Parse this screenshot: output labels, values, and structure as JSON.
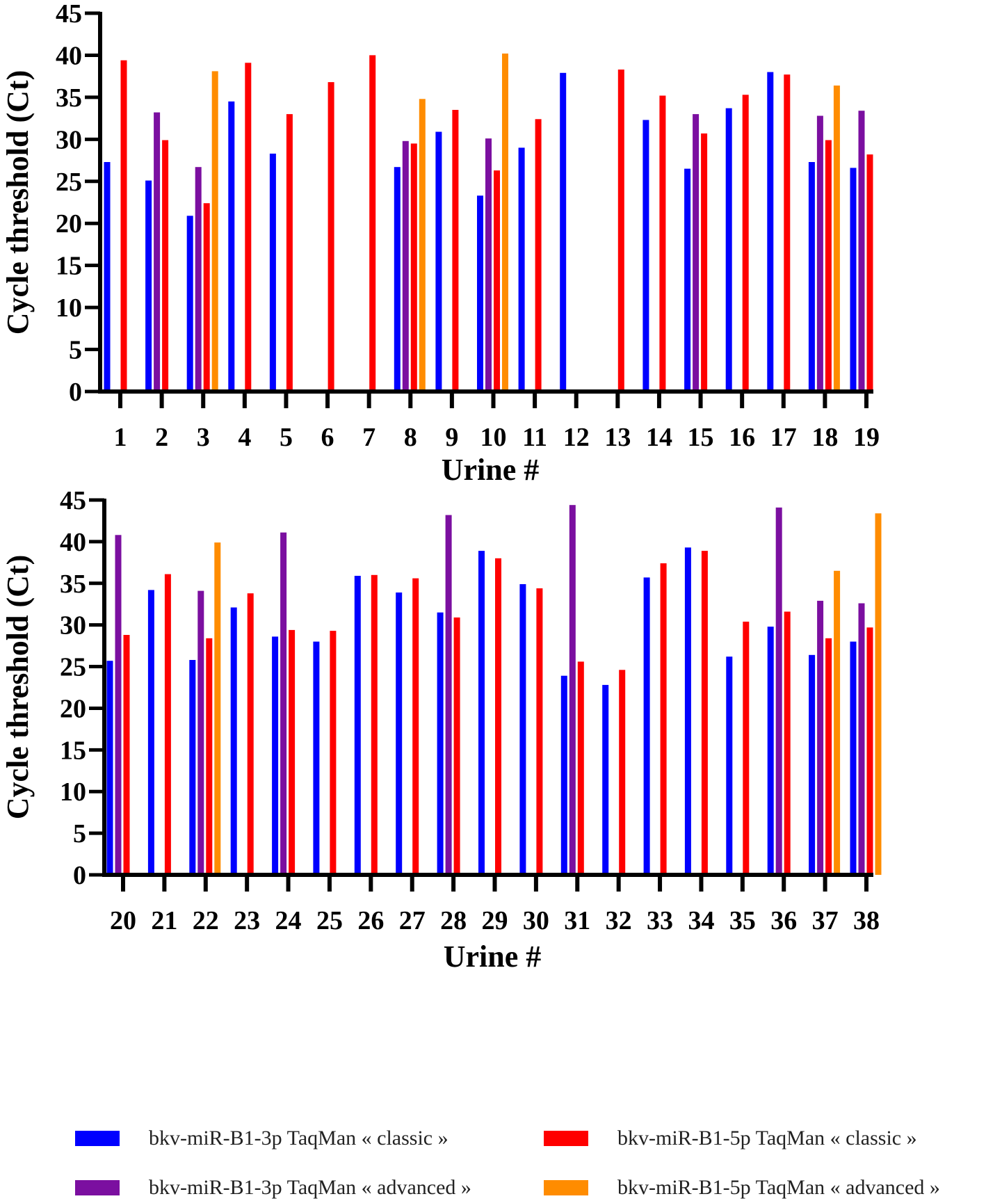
{
  "colors": {
    "classic_3p": "#0000ff",
    "advanced_3p": "#7b0fa0",
    "classic_5p": "#ff0000",
    "advanced_5p": "#ff8c00",
    "axis": "#000000"
  },
  "legend": {
    "items": [
      {
        "label": "bkv-miR-B1-3p TaqMan « classic »",
        "color": "#0000ff"
      },
      {
        "label": "bkv-miR-B1-5p TaqMan « classic »",
        "color": "#ff0000"
      },
      {
        "label": "bkv-miR-B1-3p TaqMan « advanced »",
        "color": "#7b0fa0"
      },
      {
        "label": "bkv-miR-B1-5p TaqMan « advanced »",
        "color": "#ff8c00"
      }
    ]
  },
  "chart_data": [
    {
      "type": "bar",
      "xlabel": "Urine #",
      "ylabel": "Cycle threshold (Ct)",
      "ylim": [
        0,
        45
      ],
      "yticks": [
        "0",
        "5",
        "10",
        "15",
        "20",
        "25",
        "30",
        "35",
        "40",
        "45"
      ],
      "categories": [
        "1",
        "2",
        "3",
        "4",
        "5",
        "6",
        "7",
        "8",
        "9",
        "10",
        "11",
        "12",
        "13",
        "14",
        "15",
        "16",
        "17",
        "18",
        "19"
      ],
      "series": [
        {
          "name": "bkv-miR-B1-3p TaqMan « classic »",
          "color": "#0000ff",
          "values": [
            27.3,
            25.1,
            20.9,
            34.5,
            28.3,
            0,
            0,
            26.7,
            30.9,
            23.3,
            29.0,
            37.9,
            0,
            32.3,
            26.5,
            33.7,
            38.0,
            27.3,
            26.6
          ]
        },
        {
          "name": "bkv-miR-B1-3p TaqMan « advanced »",
          "color": "#7b0fa0",
          "values": [
            0,
            33.2,
            26.7,
            0,
            0,
            0,
            0,
            29.8,
            0,
            30.1,
            0,
            0,
            0,
            0,
            33.0,
            0,
            0,
            32.8,
            33.4
          ]
        },
        {
          "name": "bkv-miR-B1-5p TaqMan « classic »",
          "color": "#ff0000",
          "values": [
            39.4,
            29.9,
            22.4,
            39.1,
            33.0,
            36.8,
            40.0,
            29.5,
            33.5,
            26.3,
            32.4,
            0,
            38.3,
            35.2,
            30.7,
            35.3,
            37.7,
            29.9,
            28.2
          ]
        },
        {
          "name": "bkv-miR-B1-5p TaqMan « advanced »",
          "color": "#ff8c00",
          "values": [
            0,
            0,
            38.1,
            0,
            0,
            0,
            0,
            34.8,
            0,
            40.2,
            0,
            0,
            0,
            0,
            0,
            0,
            0,
            36.4,
            0
          ]
        }
      ]
    },
    {
      "type": "bar",
      "xlabel": "Urine #",
      "ylabel": "Cycle threshold (Ct)",
      "ylim": [
        0,
        45
      ],
      "yticks": [
        "0",
        "5",
        "10",
        "15",
        "20",
        "25",
        "30",
        "35",
        "40",
        "45"
      ],
      "categories": [
        "20",
        "21",
        "22",
        "23",
        "24",
        "25",
        "26",
        "27",
        "28",
        "29",
        "30",
        "31",
        "32",
        "33",
        "34",
        "35",
        "36",
        "37",
        "38"
      ],
      "series": [
        {
          "name": "bkv-miR-B1-3p TaqMan « classic »",
          "color": "#0000ff",
          "values": [
            25.7,
            34.2,
            25.8,
            32.1,
            28.6,
            28.0,
            35.9,
            33.9,
            31.5,
            38.9,
            34.9,
            23.9,
            22.8,
            35.7,
            39.3,
            26.2,
            29.8,
            26.4,
            28.0
          ]
        },
        {
          "name": "bkv-miR-B1-3p TaqMan « advanced »",
          "color": "#7b0fa0",
          "values": [
            40.8,
            0,
            34.1,
            0,
            41.1,
            0,
            0,
            0,
            43.2,
            0,
            0,
            44.4,
            0,
            0,
            0,
            0,
            44.1,
            32.9,
            32.6
          ]
        },
        {
          "name": "bkv-miR-B1-5p TaqMan « classic »",
          "color": "#ff0000",
          "values": [
            28.8,
            36.1,
            28.4,
            33.8,
            29.4,
            29.3,
            36.0,
            35.6,
            30.9,
            38.0,
            34.4,
            25.6,
            24.6,
            37.4,
            38.9,
            30.4,
            31.6,
            28.4,
            29.7
          ]
        },
        {
          "name": "bkv-miR-B1-5p TaqMan « advanced »",
          "color": "#ff8c00",
          "values": [
            0,
            0,
            39.9,
            0,
            0,
            0,
            0,
            0,
            0,
            0,
            0,
            0,
            0,
            0,
            0,
            0,
            0,
            36.5,
            43.4
          ]
        }
      ]
    }
  ]
}
